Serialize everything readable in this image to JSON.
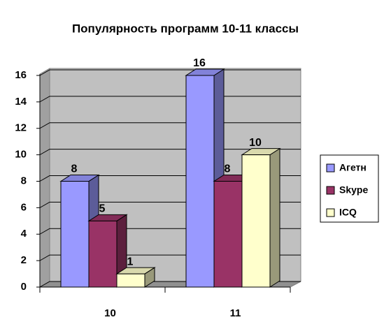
{
  "chart_data": {
    "type": "bar3d",
    "title": "Популярность программ 10-11 классы",
    "categories": [
      "10",
      "11"
    ],
    "series": [
      {
        "name": "Агетн",
        "color": "#9999ff",
        "values": [
          8,
          16
        ]
      },
      {
        "name": "Skype",
        "color": "#993366",
        "values": [
          5,
          8
        ]
      },
      {
        "name": "ICQ",
        "color": "#ffffcc",
        "values": [
          1,
          10
        ]
      }
    ],
    "ylim": [
      0,
      16
    ],
    "yticks": [
      0,
      2,
      4,
      6,
      8,
      10,
      12,
      14,
      16
    ],
    "grid": true,
    "legend": "right"
  }
}
